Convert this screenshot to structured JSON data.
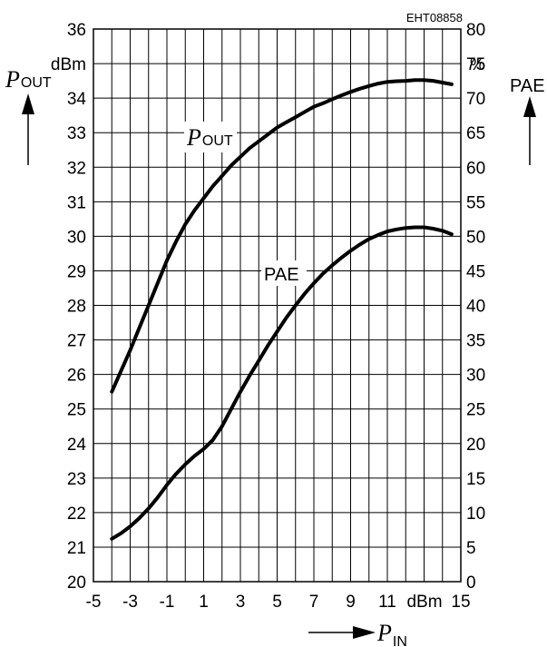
{
  "chart_data": {
    "type": "line",
    "figure_code": "EHT08858",
    "x_axis": {
      "label_main": "P",
      "label_sub": "IN",
      "unit": "dBm",
      "range": [
        -5,
        15
      ],
      "ticks": [
        -5,
        -3,
        -1,
        1,
        3,
        5,
        7,
        9,
        11,
        15
      ],
      "grid_step": 1
    },
    "y_left": {
      "label_main": "P",
      "label_sub": "OUT",
      "unit": "dBm",
      "range": [
        20,
        36
      ],
      "ticks": [
        20,
        21,
        22,
        23,
        24,
        25,
        26,
        27,
        28,
        29,
        30,
        31,
        32,
        33,
        34,
        36
      ],
      "grid_step": 1
    },
    "y_right": {
      "label": "PAE",
      "unit": "%",
      "range": [
        0,
        80
      ],
      "ticks": [
        0,
        5,
        10,
        15,
        20,
        25,
        30,
        35,
        40,
        45,
        50,
        55,
        60,
        65,
        70,
        75,
        80
      ]
    },
    "grid": true,
    "series": [
      {
        "name_main": "P",
        "name_sub": "OUT",
        "axis": "left",
        "x": [
          -4,
          -3.5,
          -3,
          -2.5,
          -2,
          -1.5,
          -1,
          -0.5,
          0,
          0.5,
          1,
          1.5,
          2,
          2.5,
          3,
          3.5,
          4,
          4.5,
          5,
          5.5,
          6,
          6.5,
          7,
          7.5,
          8,
          8.5,
          9,
          9.5,
          10,
          10.5,
          11,
          11.5,
          12,
          12.5,
          13,
          13.5,
          14,
          14.5
        ],
        "values": [
          25.5,
          26.1,
          26.7,
          27.35,
          28.0,
          28.65,
          29.3,
          29.85,
          30.35,
          30.75,
          31.1,
          31.45,
          31.75,
          32.05,
          32.3,
          32.55,
          32.75,
          32.95,
          33.15,
          33.3,
          33.45,
          33.6,
          33.75,
          33.85,
          33.97,
          34.08,
          34.18,
          34.27,
          34.35,
          34.42,
          34.47,
          34.49,
          34.5,
          34.52,
          34.52,
          34.5,
          34.45,
          34.4
        ]
      },
      {
        "name_main": "PAE",
        "name_sub": "",
        "axis": "right",
        "x": [
          -4,
          -3.5,
          -3,
          -2.5,
          -2,
          -1.5,
          -1,
          -0.5,
          0,
          0.5,
          1,
          1.5,
          2,
          2.5,
          3,
          3.5,
          4,
          4.5,
          5,
          5.5,
          6,
          6.5,
          7,
          7.5,
          8,
          8.5,
          9,
          9.5,
          10,
          10.5,
          11,
          11.5,
          12,
          12.5,
          13,
          13.5,
          14,
          14.5
        ],
        "values": [
          6.2,
          7.0,
          8.0,
          9.2,
          10.6,
          12.2,
          14.0,
          15.6,
          17.0,
          18.2,
          19.2,
          20.5,
          22.5,
          25.0,
          27.5,
          29.8,
          32.0,
          34.2,
          36.2,
          38.2,
          40.0,
          41.7,
          43.2,
          44.6,
          45.8,
          46.9,
          47.9,
          48.8,
          49.6,
          50.2,
          50.7,
          51.0,
          51.2,
          51.3,
          51.3,
          51.1,
          50.8,
          50.3
        ]
      }
    ]
  }
}
